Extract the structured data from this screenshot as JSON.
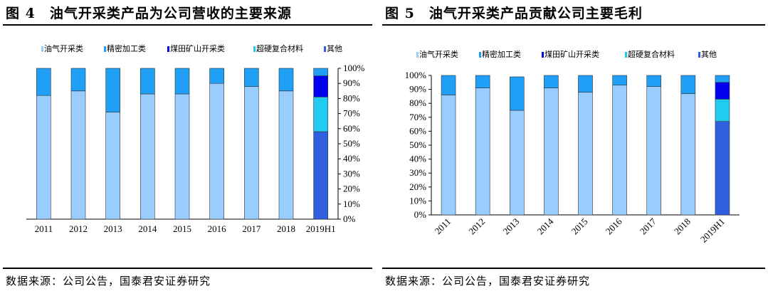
{
  "colors": {
    "oil_gas": "#99ccff",
    "refining": "#1f9ff6",
    "coal_mining": "#0000ee",
    "superhard": "#22ccf0",
    "other": "#2f5fde"
  },
  "legend": [
    {
      "label": "油气开采类",
      "color": "#99ccff"
    },
    {
      "label": "精密加工类",
      "color": "#1f9ff6"
    },
    {
      "label": "煤田矿山开采类",
      "color": "#0000ee"
    },
    {
      "label": "超硬复合材料",
      "color": "#22ccf0"
    },
    {
      "label": "其他",
      "color": "#2f5fde"
    }
  ],
  "left": {
    "title": "图 4　油气开采类产品为公司营收的主要来源",
    "source": "数据来源：公司公告，国泰君安证券研究"
  },
  "right": {
    "title": "图 5　油气开采类产品贡献公司主要毛利",
    "source": "数据来源：公司公告，国泰君安证券研究"
  },
  "chart_data": [
    {
      "type": "bar",
      "stacked": true,
      "title": "油气开采类产品为公司营收的主要来源",
      "categories": [
        "2011",
        "2012",
        "2013",
        "2014",
        "2015",
        "2016",
        "2017",
        "2018",
        "2019H1"
      ],
      "series": [
        {
          "name": "油气开采类",
          "values": [
            82,
            85,
            71,
            83,
            83,
            90,
            88,
            85,
            0
          ]
        },
        {
          "name": "精密加工类",
          "values": [
            18,
            15,
            29,
            17,
            17,
            10,
            12,
            15,
            0
          ]
        },
        {
          "name": "煤田矿山开采类",
          "values": [
            0,
            0,
            0,
            0,
            0,
            0,
            0,
            0,
            14
          ]
        },
        {
          "name": "超硬复合材料",
          "values": [
            0,
            0,
            0,
            0,
            0,
            0,
            0,
            0,
            23
          ]
        },
        {
          "name": "其他",
          "values": [
            0,
            0,
            0,
            0,
            0,
            0,
            0,
            0,
            58
          ]
        }
      ],
      "extra_top_segment": {
        "category": "2019H1",
        "color": "#1f9ff6",
        "value": 5
      },
      "ylim": [
        0,
        100
      ],
      "yticks": [
        "0%",
        "10%",
        "20%",
        "30%",
        "40%",
        "50%",
        "60%",
        "70%",
        "80%",
        "90%",
        "100%"
      ],
      "ytick_side": "right",
      "legend_position": "top",
      "grid": false
    },
    {
      "type": "bar",
      "stacked": true,
      "title": "油气开采类产品贡献公司主要毛利",
      "categories": [
        "2011",
        "2012",
        "2013",
        "2014",
        "2015",
        "2016",
        "2017",
        "2018",
        "2019H1"
      ],
      "series": [
        {
          "name": "油气开采类",
          "values": [
            86,
            91,
            75,
            91,
            88,
            93,
            92,
            87,
            0
          ]
        },
        {
          "name": "精密加工类",
          "values": [
            14,
            9,
            24,
            9,
            12,
            7,
            8,
            13,
            0
          ]
        },
        {
          "name": "煤田矿山开采类",
          "values": [
            0,
            0,
            0,
            0,
            0,
            0,
            0,
            0,
            12
          ]
        },
        {
          "name": "超硬复合材料",
          "values": [
            0,
            0,
            0,
            0,
            0,
            0,
            0,
            0,
            16
          ]
        },
        {
          "name": "其他",
          "values": [
            0,
            0,
            0,
            0,
            0,
            0,
            0,
            0,
            67
          ]
        }
      ],
      "extra_top_segment": {
        "category": "2019H1",
        "color": "#1f9ff6",
        "value": 5
      },
      "ylim": [
        0,
        100
      ],
      "yticks": [
        "0%",
        "10%",
        "20%",
        "30%",
        "40%",
        "50%",
        "60%",
        "70%",
        "80%",
        "90%",
        "100%"
      ],
      "ytick_side": "left",
      "xtick_rotation": -45,
      "legend_position": "top",
      "grid": false
    }
  ]
}
